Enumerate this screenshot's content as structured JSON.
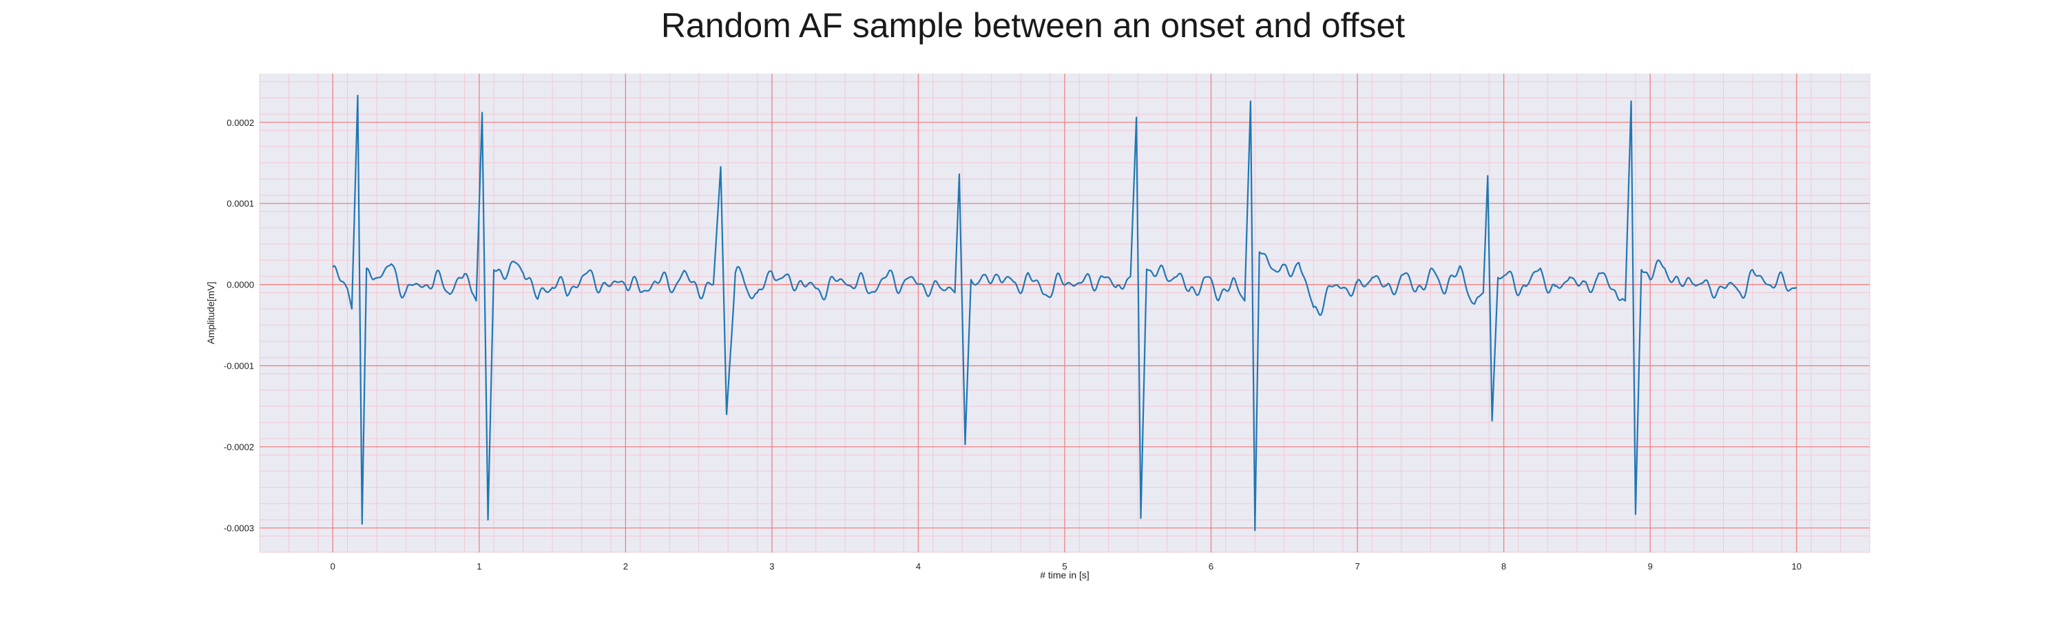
{
  "chart_data": {
    "type": "line",
    "title": "Random AF sample between an onset and offset",
    "xlabel": "# time in [s]",
    "ylabel": "Amplitude[mV]",
    "xlim": [
      -0.5,
      10.5
    ],
    "ylim": [
      -0.00033,
      0.00026
    ],
    "xticks": [
      0,
      1,
      2,
      3,
      4,
      5,
      6,
      7,
      8,
      9,
      10
    ],
    "xtick_labels": [
      "0",
      "1",
      "2",
      "3",
      "4",
      "5",
      "6",
      "7",
      "8",
      "9",
      "10"
    ],
    "yticks": [
      0.0002,
      0.0001,
      0.0,
      -0.0001,
      -0.0002,
      -0.0003
    ],
    "ytick_labels": [
      "0.0002",
      "0.0001",
      "0.0000",
      "-0.0001",
      "-0.0002",
      "-0.0003"
    ],
    "grid": true,
    "minor_grid": true,
    "colors": {
      "line": "#1f77b4",
      "plot_background": "#eaeaf2",
      "major_grid": "#f08080",
      "minor_grid": "#f2c8d4"
    },
    "beats": [
      {
        "t": 0.17,
        "r": 0.000233,
        "s": -0.000295
      },
      {
        "t": 1.02,
        "r": 0.000212,
        "s": -0.00029
      },
      {
        "t": 2.65,
        "r": 0.000145,
        "s": -0.00016
      },
      {
        "t": 4.28,
        "r": 0.000136,
        "s": -0.000197
      },
      {
        "t": 5.49,
        "r": 0.000206,
        "s": -0.000288
      },
      {
        "t": 6.27,
        "r": 0.000226,
        "s": -0.000303
      },
      {
        "t": 7.89,
        "r": 0.000134,
        "s": -0.000168
      },
      {
        "t": 8.87,
        "r": 0.000226,
        "s": -0.000283
      }
    ],
    "series": [
      {
        "x": [
          0.0,
          0.05,
          0.1,
          0.13,
          0.17,
          0.2,
          0.23,
          0.3,
          0.4,
          0.5,
          0.6,
          0.7,
          0.8,
          0.9,
          0.98,
          1.02,
          1.06,
          1.1,
          1.2,
          1.3,
          1.4,
          1.5,
          1.6,
          1.7,
          1.8,
          1.9,
          2.0,
          2.1,
          2.2,
          2.3,
          2.4,
          2.5,
          2.6,
          2.65,
          2.69,
          2.75,
          2.8,
          2.9,
          3.0,
          3.1,
          3.2,
          3.3,
          3.4,
          3.5,
          3.6,
          3.7,
          3.8,
          3.9,
          4.0,
          4.1,
          4.2,
          4.25,
          4.28,
          4.32,
          4.36,
          4.45,
          4.55,
          4.65,
          4.75,
          4.85,
          4.95,
          5.05,
          5.15,
          5.25,
          5.35,
          5.45,
          5.49,
          5.52,
          5.56,
          5.65,
          5.75,
          5.85,
          5.95,
          6.05,
          6.15,
          6.23,
          6.27,
          6.3,
          6.33,
          6.4,
          6.5,
          6.6,
          6.7,
          6.8,
          6.9,
          7.0,
          7.1,
          7.2,
          7.3,
          7.4,
          7.5,
          7.6,
          7.7,
          7.8,
          7.86,
          7.89,
          7.92,
          7.96,
          8.05,
          8.15,
          8.25,
          8.35,
          8.45,
          8.55,
          8.65,
          8.75,
          8.83,
          8.87,
          8.9,
          8.94,
          9.0,
          9.1,
          9.2,
          9.3,
          9.4,
          9.5,
          9.6,
          9.7,
          9.8,
          9.9,
          10.0
        ],
        "y": [
          1.5e-05,
          5e-06,
          -5e-06,
          -3e-05,
          0.000233,
          -0.000295,
          2e-05,
          1e-05,
          2e-05,
          -1e-05,
          0.0,
          5e-06,
          -5e-06,
          1e-05,
          -2e-05,
          0.000212,
          -0.00029,
          2e-05,
          1.5e-05,
          2.5e-05,
          -2e-05,
          5e-06,
          -1e-05,
          1e-05,
          5e-06,
          -5e-06,
          8e-06,
          -1e-05,
          5e-06,
          0.0,
          1e-05,
          -5e-06,
          0.0,
          0.000145,
          -0.00016,
          1e-05,
          1e-05,
          -2e-05,
          2e-05,
          0.0,
          5e-06,
          -1e-05,
          0.0,
          5e-06,
          0.0,
          -5e-06,
          1e-05,
          0.0,
          5e-06,
          -1e-05,
          0.0,
          -1e-05,
          0.000136,
          -0.000197,
          1e-05,
          0.0,
          1.5e-05,
          -5e-06,
          1e-05,
          -1e-05,
          0.0,
          5e-06,
          0.0,
          1e-05,
          -5e-06,
          1e-05,
          0.000206,
          -0.000288,
          2e-05,
          1e-05,
          1.5e-05,
          -1e-05,
          5e-06,
          -1e-05,
          0.0,
          -2e-05,
          0.000226,
          -0.000303,
          4e-05,
          3e-05,
          1e-05,
          3e-05,
          -3.5e-05,
          -1e-05,
          0.0,
          -1e-05,
          1.5e-05,
          -1e-05,
          1e-05,
          -5e-06,
          1e-05,
          0.0,
          1.5e-05,
          -2e-05,
          -1e-05,
          0.000134,
          -0.000168,
          1e-05,
          5e-06,
          -5e-06,
          2e-05,
          -1.5e-05,
          1.5e-05,
          -1e-05,
          1.5e-05,
          -1e-05,
          -2e-05,
          0.000226,
          -0.000283,
          2e-05,
          1e-05,
          2.5e-05,
          -5e-06,
          1e-05,
          -1e-05,
          0.0,
          -1e-05,
          1e-05,
          5e-06,
          0.0,
          0.0
        ]
      }
    ]
  }
}
